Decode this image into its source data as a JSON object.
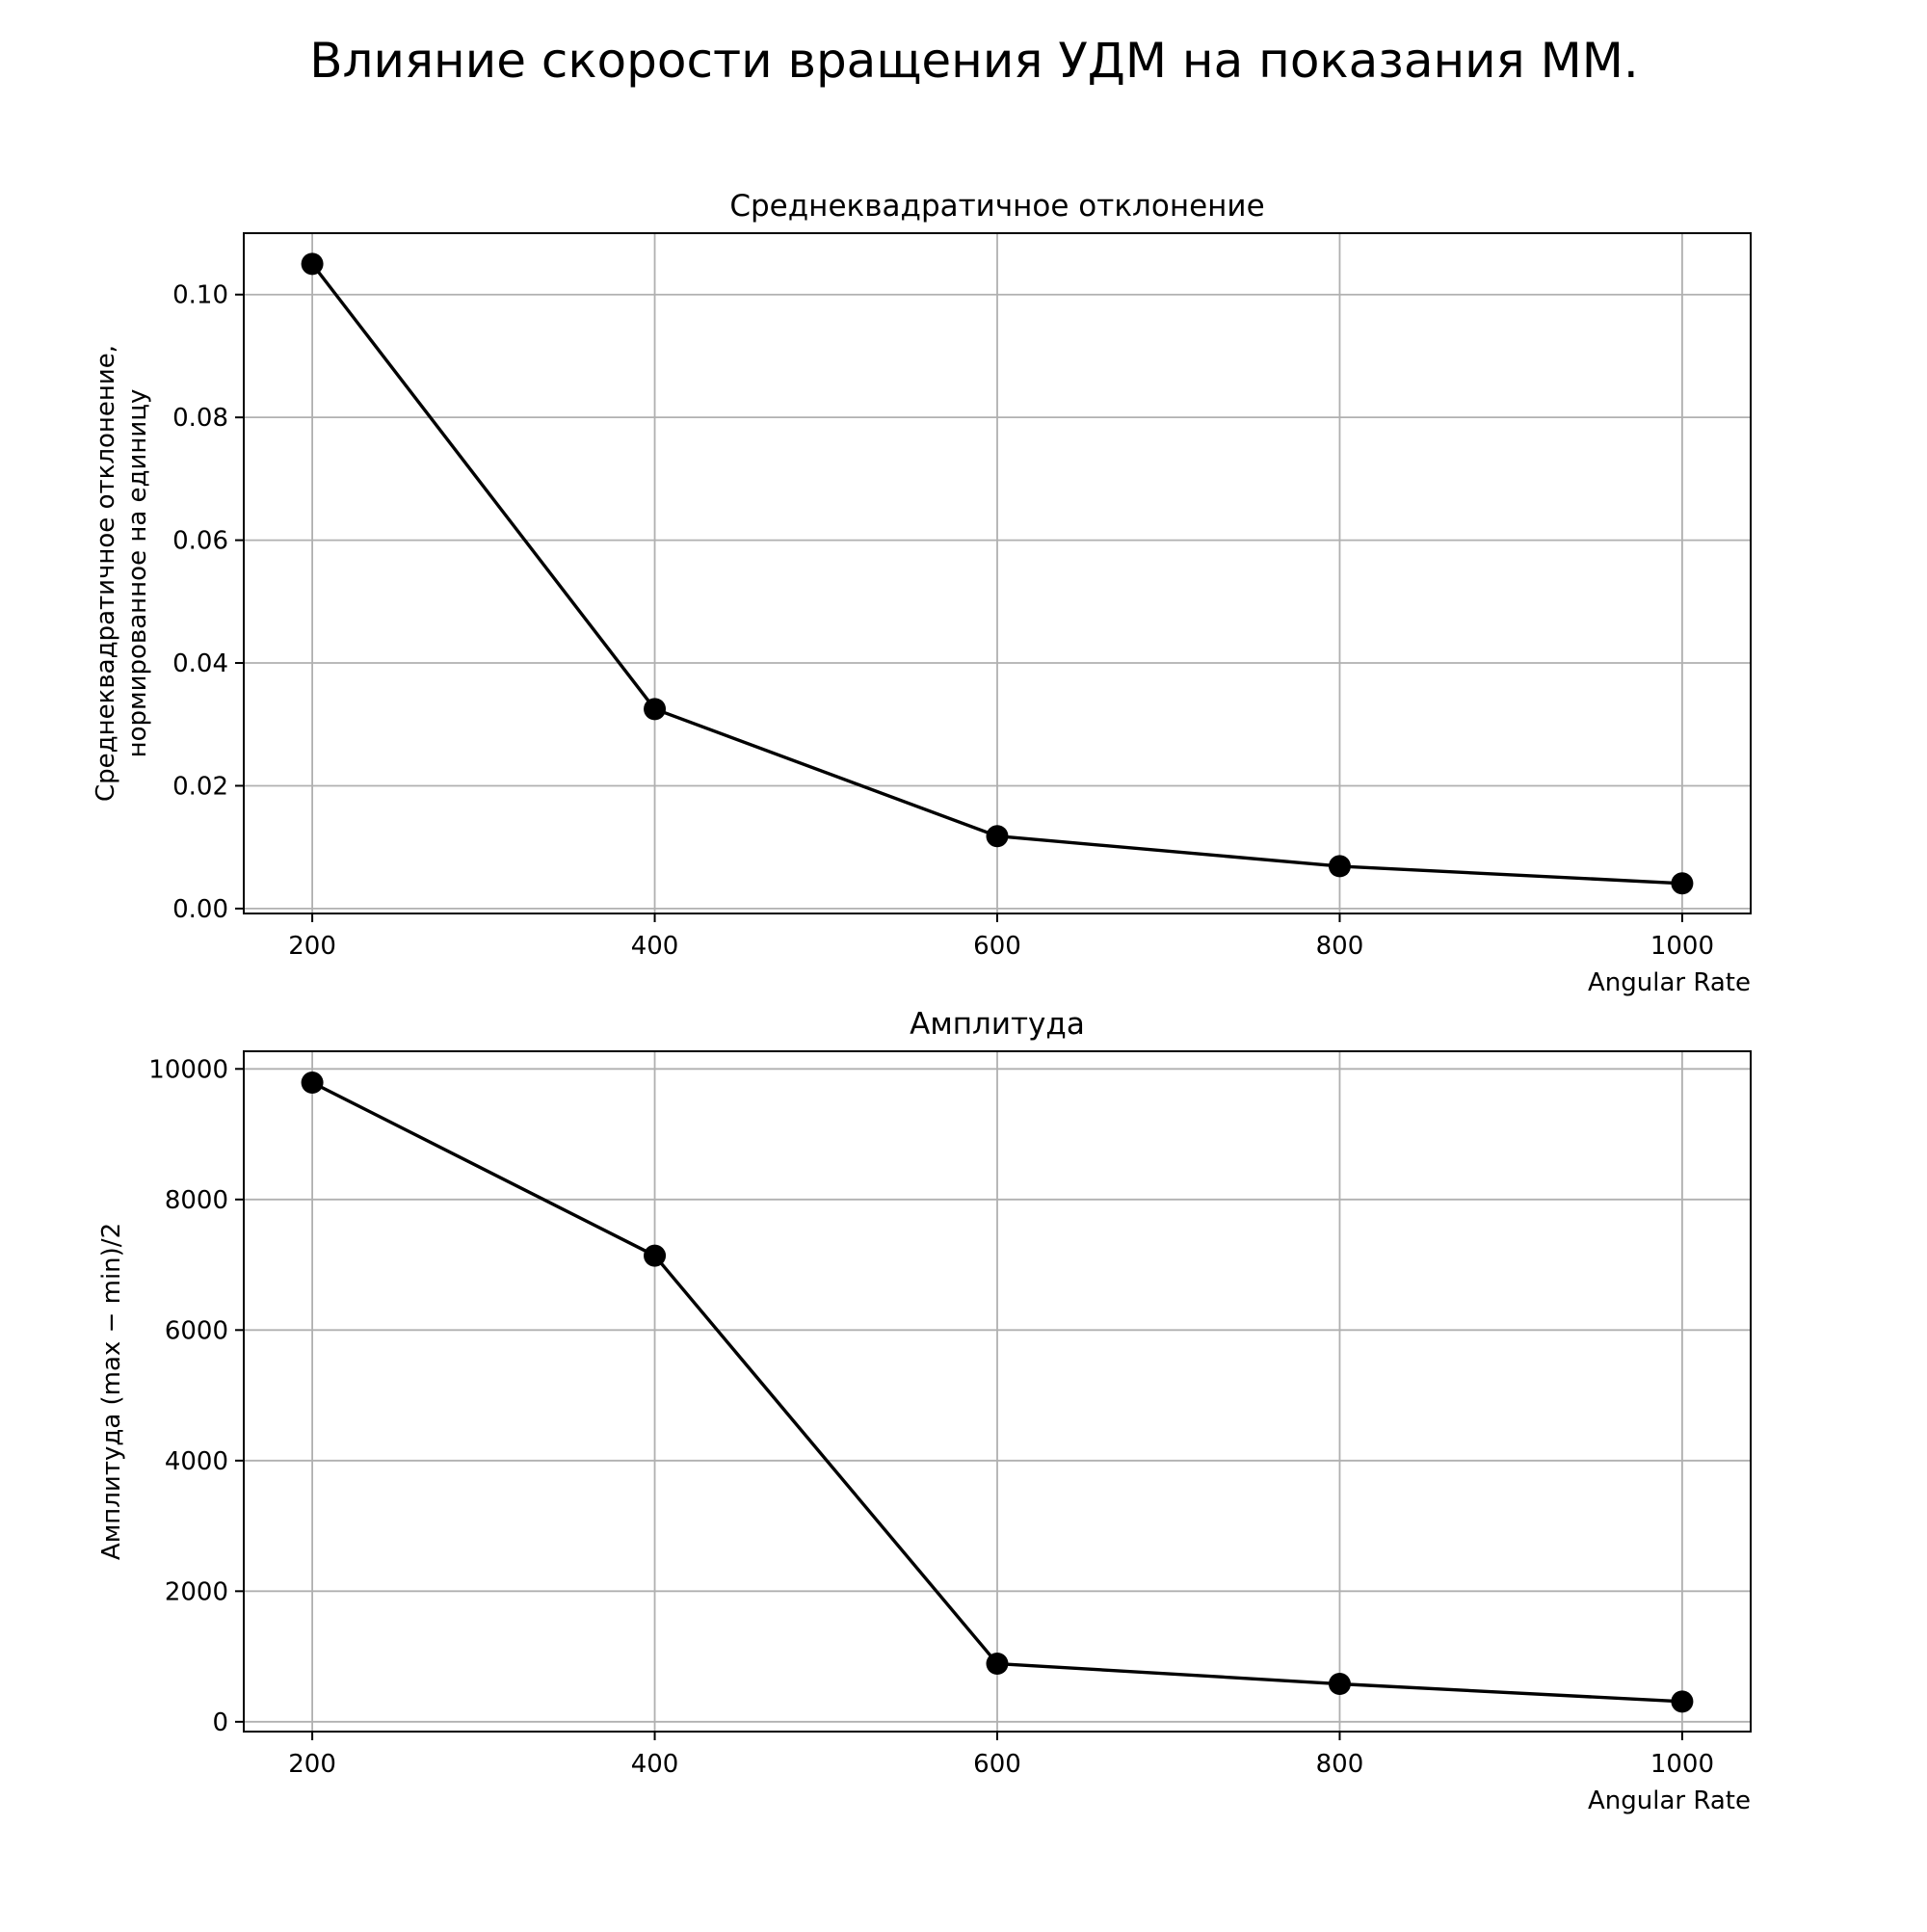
{
  "figure": {
    "title": "Влияние скорости вращения УДМ на показания ММ."
  },
  "chart_data": [
    {
      "type": "line",
      "title": "Среднеквадратичное отклонение",
      "xlabel": "Angular Rate",
      "ylabel_lines": [
        "Среднеквадратичное отклонение,",
        "нормированное на единицу"
      ],
      "x": [
        200,
        400,
        600,
        800,
        1000
      ],
      "y": [
        0.105,
        0.0325,
        0.0118,
        0.0069,
        0.0041
      ],
      "xlim": [
        160,
        1040
      ],
      "ylim": [
        -0.0008,
        0.11
      ],
      "xticks": [
        200,
        400,
        600,
        800,
        1000
      ],
      "xtick_labels": [
        "200",
        "400",
        "600",
        "800",
        "1000"
      ],
      "yticks": [
        0.0,
        0.02,
        0.04,
        0.06,
        0.08,
        0.1
      ],
      "ytick_labels": [
        "0.00",
        "0.02",
        "0.04",
        "0.06",
        "0.08",
        "0.10"
      ],
      "grid": true,
      "color": "#000000",
      "marker": "circle"
    },
    {
      "type": "line",
      "title": "Амплитуда",
      "xlabel": "Angular Rate",
      "ylabel_lines": [
        "Амплитуда (max − min)/2"
      ],
      "x": [
        200,
        400,
        600,
        800,
        1000
      ],
      "y": [
        9790,
        7140,
        890,
        580,
        310
      ],
      "xlim": [
        160,
        1040
      ],
      "ylim": [
        -150,
        10270
      ],
      "xticks": [
        200,
        400,
        600,
        800,
        1000
      ],
      "xtick_labels": [
        "200",
        "400",
        "600",
        "800",
        "1000"
      ],
      "yticks": [
        0,
        2000,
        4000,
        6000,
        8000,
        10000
      ],
      "ytick_labels": [
        "0",
        "2000",
        "4000",
        "6000",
        "8000",
        "10000"
      ],
      "grid": true,
      "color": "#000000",
      "marker": "circle"
    }
  ]
}
